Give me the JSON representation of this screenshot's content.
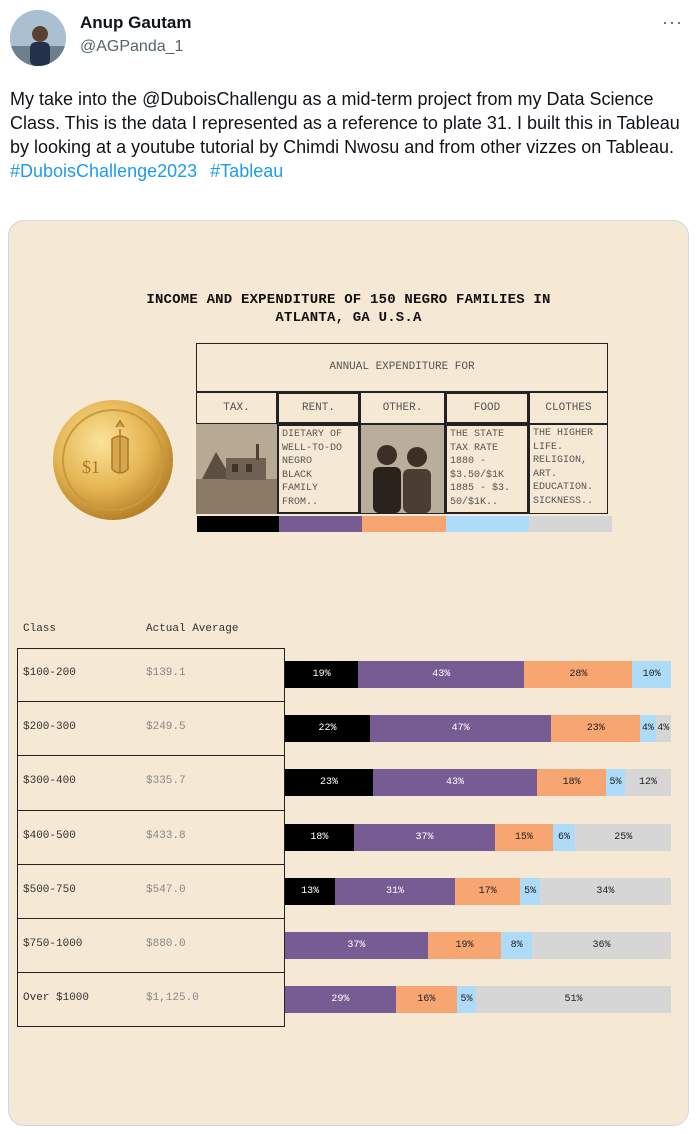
{
  "user": {
    "name": "Anup Gautam",
    "handle": "@AGPanda_1",
    "more": "···"
  },
  "tweet": {
    "text": "My take into the @DuboisChallengu as a mid-term project from my Data Science Class. This is the data I represented as a reference to plate 31. I built this in Tableau by looking at a youtube tutorial by Chimdi Nwosu and from other vizzes on Tableau.",
    "hashtags": [
      "#DuboisChallenge2023",
      "#Tableau"
    ]
  },
  "viz": {
    "title_line1": "INCOME AND EXPENDITURE OF 150 NEGRO FAMILIES IN",
    "title_line2": "ATLANTA, GA U.S.A",
    "header": "ANNUAL EXPENDITURE FOR",
    "categories": [
      "TAX.",
      "RENT.",
      "OTHER.",
      "FOOD",
      "CLOTHES"
    ],
    "notes": {
      "rent": "DIETARY OF\nWELL-TO-DO\nNEGRO\nBLACK\nFAMILY\nFROM..",
      "food": "THE STATE\nTAX RATE\n1880 -\n$3.50/$1K\n1885 - $3.\n50/$1K..",
      "clothes": "THE HIGHER\nLIFE.\nRELIGION,\nART.\nEDUCATION.\nSICKNESS.."
    },
    "colors": {
      "tax": "#000000",
      "rent": "#765c92",
      "other": "#f7a571",
      "food": "#addbf8",
      "clothes": "#d6d6d6"
    },
    "col_class": "Class",
    "col_avg": "Actual Average"
  },
  "chart_data": {
    "type": "bar",
    "orientation": "horizontal-stacked-100",
    "title": "INCOME AND EXPENDITURE OF 150 NEGRO FAMILIES IN ATLANTA, GA U.S.A",
    "series_names": [
      "Rent",
      "Food",
      "Clothes",
      "Tax",
      "Other"
    ],
    "rows": [
      {
        "class": "$100-200",
        "avg": "$139.1",
        "segments": [
          [
            "tax",
            19,
            "19%"
          ],
          [
            "rent",
            43,
            "43%"
          ],
          [
            "other",
            28,
            "28%"
          ],
          [
            "food",
            10,
            "10%"
          ]
        ]
      },
      {
        "class": "$200-300",
        "avg": "$249.5",
        "segments": [
          [
            "tax",
            22,
            "22%"
          ],
          [
            "rent",
            47,
            "47%"
          ],
          [
            "other",
            23,
            "23%"
          ],
          [
            "food",
            4,
            "4%"
          ],
          [
            "clothes",
            4,
            "4%"
          ]
        ]
      },
      {
        "class": "$300-400",
        "avg": "$335.7",
        "segments": [
          [
            "tax",
            23,
            "23%"
          ],
          [
            "rent",
            43,
            "43%"
          ],
          [
            "other",
            18,
            "18%"
          ],
          [
            "food",
            5,
            "5%"
          ],
          [
            "clothes",
            12,
            "12%"
          ]
        ]
      },
      {
        "class": "$400-500",
        "avg": "$433.8",
        "segments": [
          [
            "tax",
            18,
            "18%"
          ],
          [
            "rent",
            37,
            "37%"
          ],
          [
            "other",
            15,
            "15%"
          ],
          [
            "food",
            6,
            "6%"
          ],
          [
            "clothes",
            25,
            "25%"
          ]
        ]
      },
      {
        "class": "$500-750",
        "avg": "$547.0",
        "segments": [
          [
            "tax",
            13,
            "13%"
          ],
          [
            "rent",
            31,
            "31%"
          ],
          [
            "other",
            17,
            "17%"
          ],
          [
            "food",
            5,
            "5%"
          ],
          [
            "clothes",
            34,
            "34%"
          ]
        ]
      },
      {
        "class": "$750-1000",
        "avg": "$880.0",
        "segments": [
          [
            "rent",
            37,
            "37%"
          ],
          [
            "other",
            19,
            "19%"
          ],
          [
            "food",
            8,
            "8%"
          ],
          [
            "clothes",
            36,
            "36%"
          ]
        ]
      },
      {
        "class": "Over $1000",
        "avg": "$1,125.0",
        "segments": [
          [
            "rent",
            29,
            "29%"
          ],
          [
            "other",
            16,
            "16%"
          ],
          [
            "food",
            5,
            "5%"
          ],
          [
            "clothes",
            51,
            "51%"
          ]
        ]
      }
    ]
  }
}
